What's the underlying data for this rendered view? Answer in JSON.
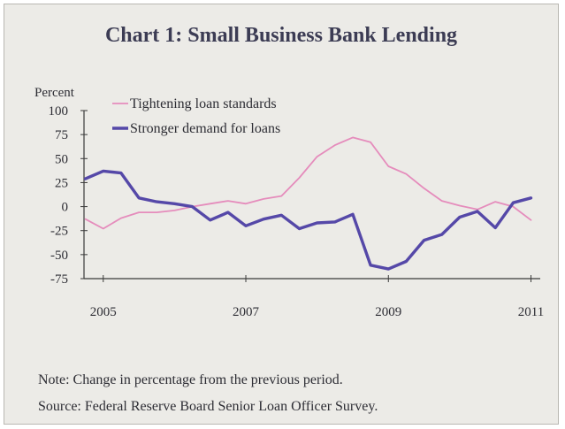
{
  "page_title": "Chart 1: Small Business Bank Lending",
  "notes": {
    "note": "Note: Change in percentage from the previous period.",
    "source": "Source: Federal Reserve Board Senior Loan Officer Survey."
  },
  "chart_data": {
    "type": "line",
    "title": "Chart 1: Small Business Bank Lending",
    "ylabel": "Percent",
    "xlabel": "",
    "ylim": [
      -75,
      100
    ],
    "xlim": [
      2004.73,
      2011.13
    ],
    "yticks": [
      100,
      75,
      50,
      25,
      0,
      -25,
      -50,
      -75
    ],
    "xticks": [
      2005,
      2007,
      2009,
      2011
    ],
    "xtick_labels": [
      "2005",
      "2007",
      "2009",
      "2011"
    ],
    "legend_position": "top-left",
    "series": [
      {
        "name": "Tightening loan standards",
        "color": "#e58cbc",
        "x": [
          2004.75,
          2005.0,
          2005.25,
          2005.5,
          2005.75,
          2006.0,
          2006.25,
          2006.5,
          2006.75,
          2007.0,
          2007.25,
          2007.5,
          2007.75,
          2008.0,
          2008.25,
          2008.5,
          2008.75,
          2009.0,
          2009.25,
          2009.5,
          2009.75,
          2010.0,
          2010.25,
          2010.5,
          2010.75,
          2011.0
        ],
        "y": [
          -13,
          -23,
          -12,
          -6,
          -6,
          -4,
          0,
          3,
          6,
          3,
          8,
          11,
          30,
          52,
          64,
          72,
          67,
          42,
          34,
          19,
          6,
          1,
          -3,
          5,
          0,
          -14
        ]
      },
      {
        "name": "Stronger demand for loans",
        "color": "#5548a8",
        "x": [
          2004.75,
          2005.0,
          2005.25,
          2005.5,
          2005.75,
          2006.0,
          2006.25,
          2006.5,
          2006.75,
          2007.0,
          2007.25,
          2007.5,
          2007.75,
          2008.0,
          2008.25,
          2008.5,
          2008.75,
          2009.0,
          2009.25,
          2009.5,
          2009.75,
          2010.0,
          2010.25,
          2010.5,
          2010.75,
          2011.0
        ],
        "y": [
          29,
          37,
          35,
          9,
          5,
          3,
          0,
          -14,
          -6,
          -20,
          -13,
          -9,
          -23,
          -17,
          -16,
          -8,
          -61,
          -65,
          -57,
          -35,
          -29,
          -11,
          -5,
          -22,
          4,
          9
        ]
      }
    ]
  }
}
